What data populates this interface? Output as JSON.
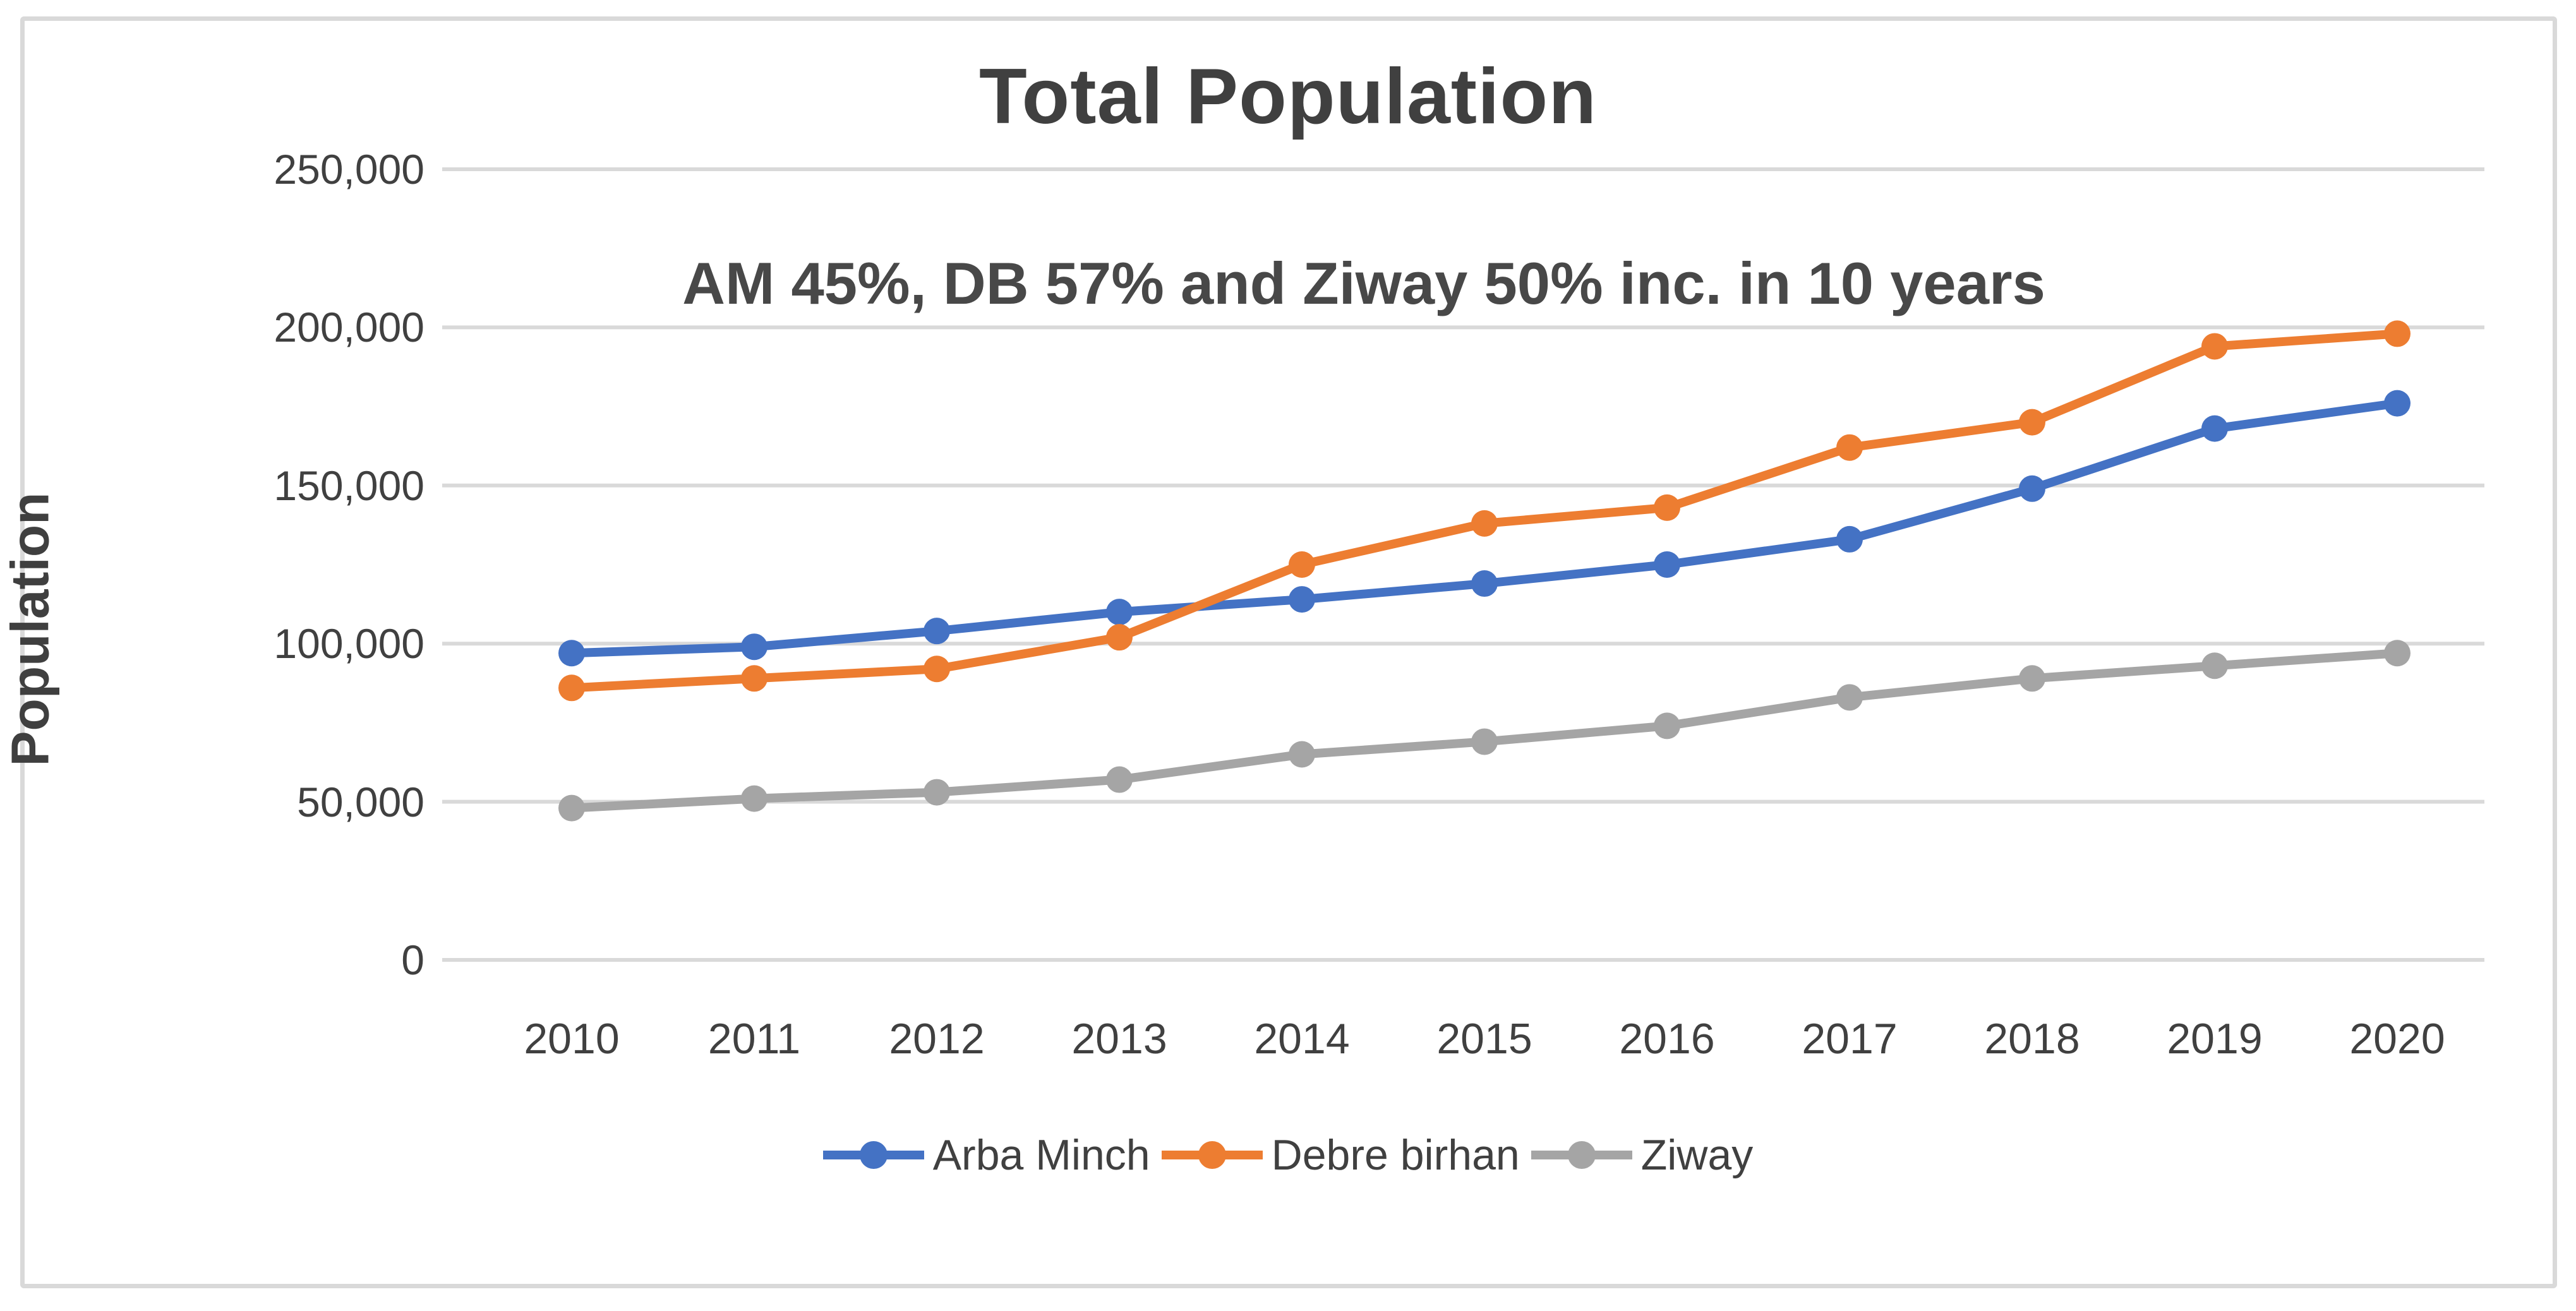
{
  "window": {
    "background_color": "#ffffff",
    "frame_border_color": "#d9d9d9"
  },
  "chart": {
    "title": "Total Population",
    "subtitle": "AM 45%, DB 57% and Ziway 50% inc. in 10 years",
    "y_axis_title": "Population",
    "gridline_color": "#d9d9d9",
    "text_color": "#404040"
  },
  "chart_data": {
    "type": "line",
    "title": "Total Population",
    "subtitle": "AM 45%, DB 57% and Ziway 50% inc. in 10 years",
    "xlabel": "",
    "ylabel": "Population",
    "categories": [
      "2010",
      "2011",
      "2012",
      "2013",
      "2014",
      "2015",
      "2016",
      "2017",
      "2018",
      "2019",
      "2020"
    ],
    "series": [
      {
        "name": "Arba Minch",
        "color": "#4472C4",
        "values": [
          97000,
          99000,
          104000,
          110000,
          114000,
          119000,
          125000,
          133000,
          149000,
          168000,
          176000
        ]
      },
      {
        "name": "Debre birhan",
        "color": "#ED7D31",
        "values": [
          86000,
          89000,
          92000,
          102000,
          125000,
          138000,
          143000,
          162000,
          170000,
          194000,
          198000
        ]
      },
      {
        "name": "Ziway",
        "color": "#A5A5A5",
        "values": [
          48000,
          51000,
          53000,
          57000,
          65000,
          69000,
          74000,
          83000,
          89000,
          93000,
          97000
        ]
      }
    ],
    "ylim": [
      0,
      250000
    ],
    "yticks": [
      {
        "value": 0,
        "label": "0"
      },
      {
        "value": 50000,
        "label": "50,000"
      },
      {
        "value": 100000,
        "label": "100,000"
      },
      {
        "value": 150000,
        "label": "150,000"
      },
      {
        "value": 200000,
        "label": "200,000"
      },
      {
        "value": 250000,
        "label": "250,000"
      }
    ],
    "grid": true,
    "legend_position": "bottom",
    "marker": "circle"
  }
}
